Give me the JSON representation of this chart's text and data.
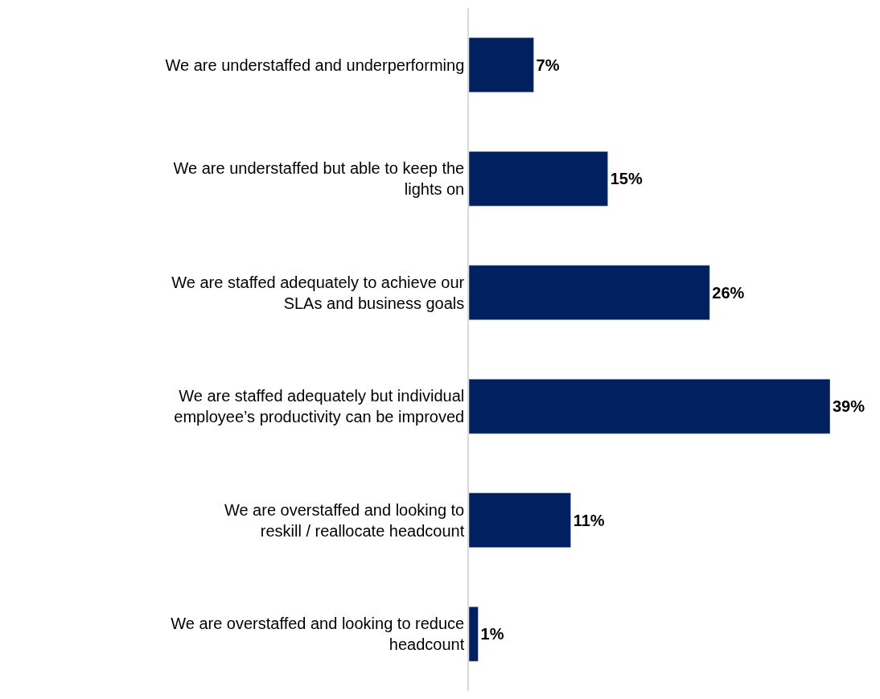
{
  "chart_data": {
    "type": "bar",
    "orientation": "horizontal",
    "categories": [
      "We are understaffed and underperforming",
      "We are understaffed but able to keep the lights on",
      "We are staffed adequately to achieve our SLAs and business goals",
      "We are staffed adequately but individual employee’s productivity can be improved",
      "We are overstaffed and looking to reskill / reallocate headcount",
      "We are overstaffed and looking to reduce headcount"
    ],
    "values": [
      7,
      15,
      26,
      39,
      11,
      1
    ],
    "value_labels": [
      "7%",
      "15%",
      "26%",
      "39%",
      "11%",
      "1%"
    ],
    "color": "#002060",
    "xlim": [
      0,
      39
    ],
    "tick_labels": "y",
    "legend": false
  }
}
